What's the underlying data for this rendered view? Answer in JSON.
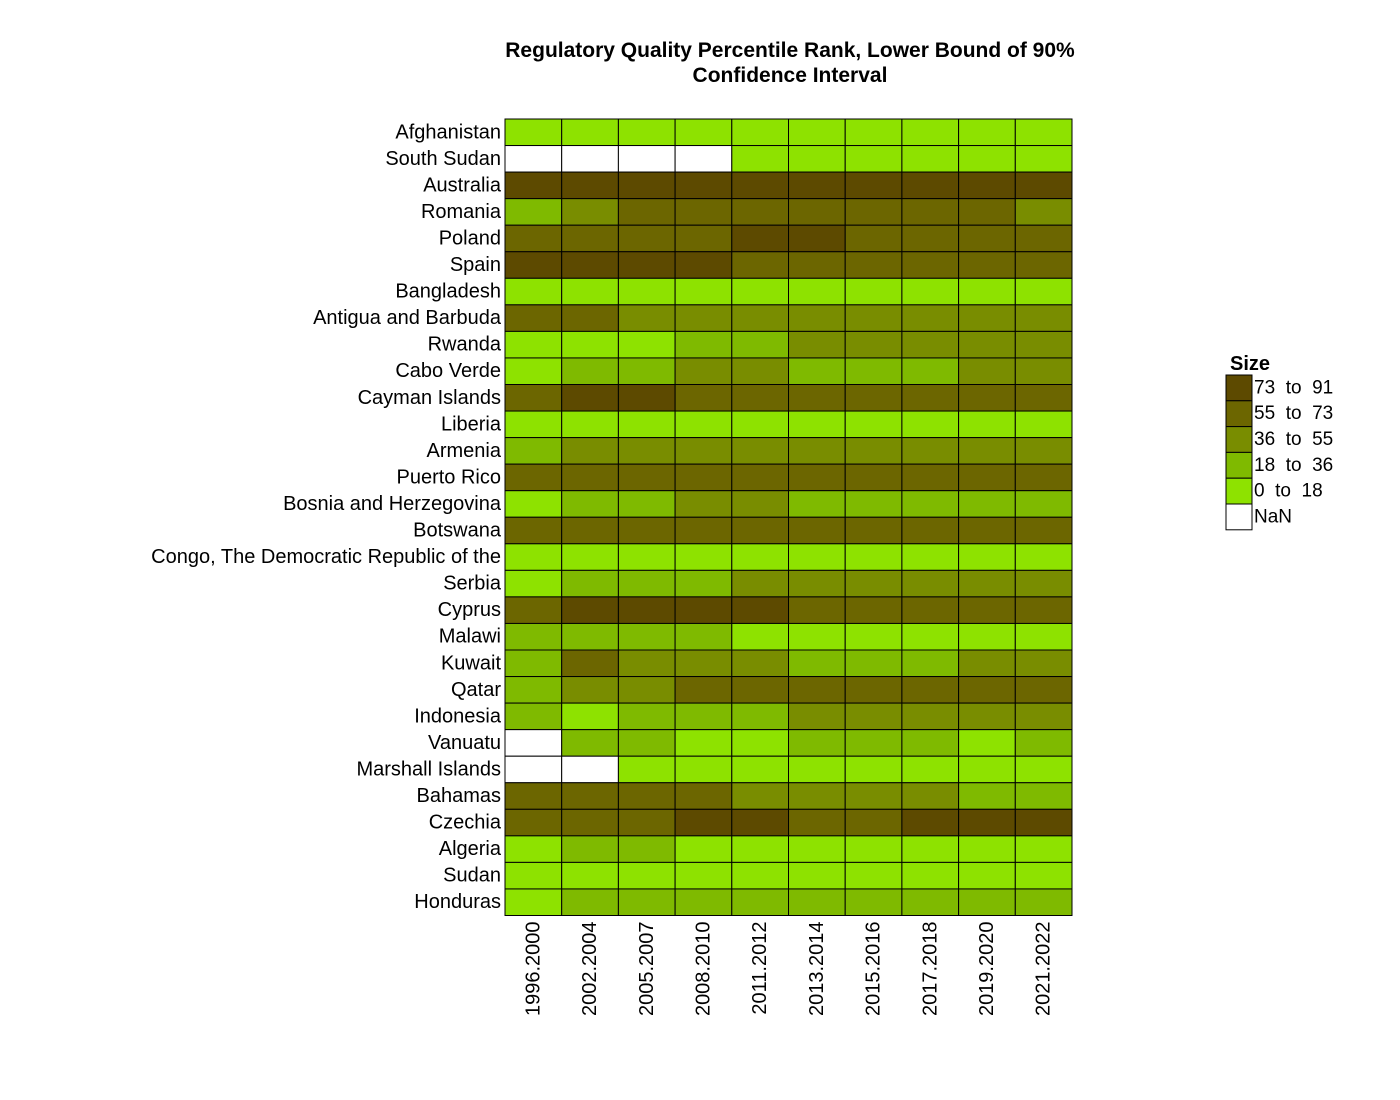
{
  "chart_data": {
    "type": "heatmap",
    "title": [
      "Regulatory Quality Percentile Rank, Lower Bound of 90%",
      "Confidence Interval"
    ],
    "xlabel": "",
    "ylabel": "",
    "columns": [
      "1996.2000",
      "2002.2004",
      "2005.2007",
      "2008.2010",
      "2011.2012",
      "2013.2014",
      "2015.2016",
      "2017.2018",
      "2019.2020",
      "2021.2022"
    ],
    "rows": [
      "Afghanistan",
      "South Sudan",
      "Australia",
      "Romania",
      "Poland",
      "Spain",
      "Bangladesh",
      "Antigua and Barbuda",
      "Rwanda",
      "Cabo Verde",
      "Cayman Islands",
      "Liberia",
      "Armenia",
      "Puerto Rico",
      "Bosnia and Herzegovina",
      "Botswana",
      "Congo, The Democratic Republic of the",
      "Serbia",
      "Cyprus",
      "Malawi",
      "Kuwait",
      "Qatar",
      "Indonesia",
      "Vanuatu",
      "Marshall Islands",
      "Bahamas",
      "Czechia",
      "Algeria",
      "Sudan",
      "Honduras"
    ],
    "values": [
      [
        5,
        5,
        5,
        5,
        5,
        5,
        5,
        5,
        5,
        5
      ],
      [
        null,
        null,
        null,
        null,
        5,
        5,
        5,
        5,
        5,
        5
      ],
      [
        85,
        85,
        85,
        85,
        85,
        85,
        85,
        85,
        85,
        85
      ],
      [
        30,
        45,
        62,
        62,
        62,
        62,
        62,
        62,
        62,
        45
      ],
      [
        62,
        62,
        62,
        62,
        85,
        85,
        62,
        62,
        62,
        62
      ],
      [
        85,
        85,
        85,
        85,
        62,
        62,
        62,
        62,
        62,
        62
      ],
      [
        5,
        5,
        5,
        5,
        5,
        5,
        5,
        5,
        5,
        5
      ],
      [
        62,
        62,
        45,
        45,
        45,
        45,
        45,
        45,
        45,
        45
      ],
      [
        5,
        5,
        5,
        30,
        30,
        45,
        45,
        45,
        45,
        45
      ],
      [
        5,
        30,
        30,
        45,
        45,
        30,
        30,
        30,
        45,
        45
      ],
      [
        62,
        85,
        85,
        62,
        62,
        62,
        62,
        62,
        62,
        62
      ],
      [
        5,
        5,
        5,
        5,
        5,
        5,
        5,
        5,
        5,
        5
      ],
      [
        30,
        45,
        45,
        45,
        45,
        45,
        45,
        45,
        45,
        45
      ],
      [
        62,
        62,
        62,
        62,
        62,
        62,
        62,
        62,
        62,
        62
      ],
      [
        5,
        30,
        30,
        45,
        45,
        30,
        30,
        30,
        30,
        30
      ],
      [
        62,
        62,
        62,
        62,
        62,
        62,
        62,
        62,
        62,
        62
      ],
      [
        5,
        5,
        5,
        5,
        5,
        5,
        5,
        5,
        5,
        5
      ],
      [
        5,
        30,
        30,
        30,
        45,
        45,
        45,
        45,
        45,
        45
      ],
      [
        62,
        85,
        85,
        85,
        85,
        62,
        62,
        62,
        62,
        62
      ],
      [
        30,
        30,
        30,
        30,
        5,
        5,
        5,
        5,
        5,
        5
      ],
      [
        30,
        62,
        45,
        45,
        45,
        30,
        30,
        30,
        45,
        45
      ],
      [
        30,
        45,
        45,
        62,
        62,
        62,
        62,
        62,
        62,
        62
      ],
      [
        30,
        5,
        30,
        30,
        30,
        45,
        45,
        45,
        45,
        45
      ],
      [
        null,
        30,
        30,
        5,
        5,
        30,
        30,
        30,
        5,
        30
      ],
      [
        null,
        null,
        5,
        5,
        5,
        5,
        5,
        5,
        5,
        5
      ],
      [
        62,
        62,
        62,
        62,
        45,
        45,
        45,
        45,
        30,
        30
      ],
      [
        62,
        62,
        62,
        85,
        85,
        62,
        62,
        85,
        85,
        85
      ],
      [
        5,
        30,
        30,
        5,
        5,
        5,
        5,
        5,
        5,
        5
      ],
      [
        5,
        5,
        5,
        5,
        5,
        5,
        5,
        5,
        5,
        5
      ],
      [
        5,
        30,
        30,
        30,
        30,
        30,
        30,
        30,
        30,
        30
      ]
    ],
    "legend": {
      "title": "Size",
      "position": "right",
      "bins": [
        {
          "label": "73  to  91",
          "min": 73,
          "max": 91,
          "color": "#5d4a00"
        },
        {
          "label": "55  to  73",
          "min": 55,
          "max": 73,
          "color": "#6c6600"
        },
        {
          "label": "36  to  55",
          "min": 36,
          "max": 55,
          "color": "#798d00"
        },
        {
          "label": "18  to  36",
          "min": 18,
          "max": 36,
          "color": "#7fba00"
        },
        {
          "label": "0  to  18",
          "min": 0,
          "max": 18,
          "color": "#8ee200"
        },
        {
          "label": "NaN",
          "min": null,
          "max": null,
          "color": "#ffffff"
        }
      ]
    },
    "grid": false
  }
}
